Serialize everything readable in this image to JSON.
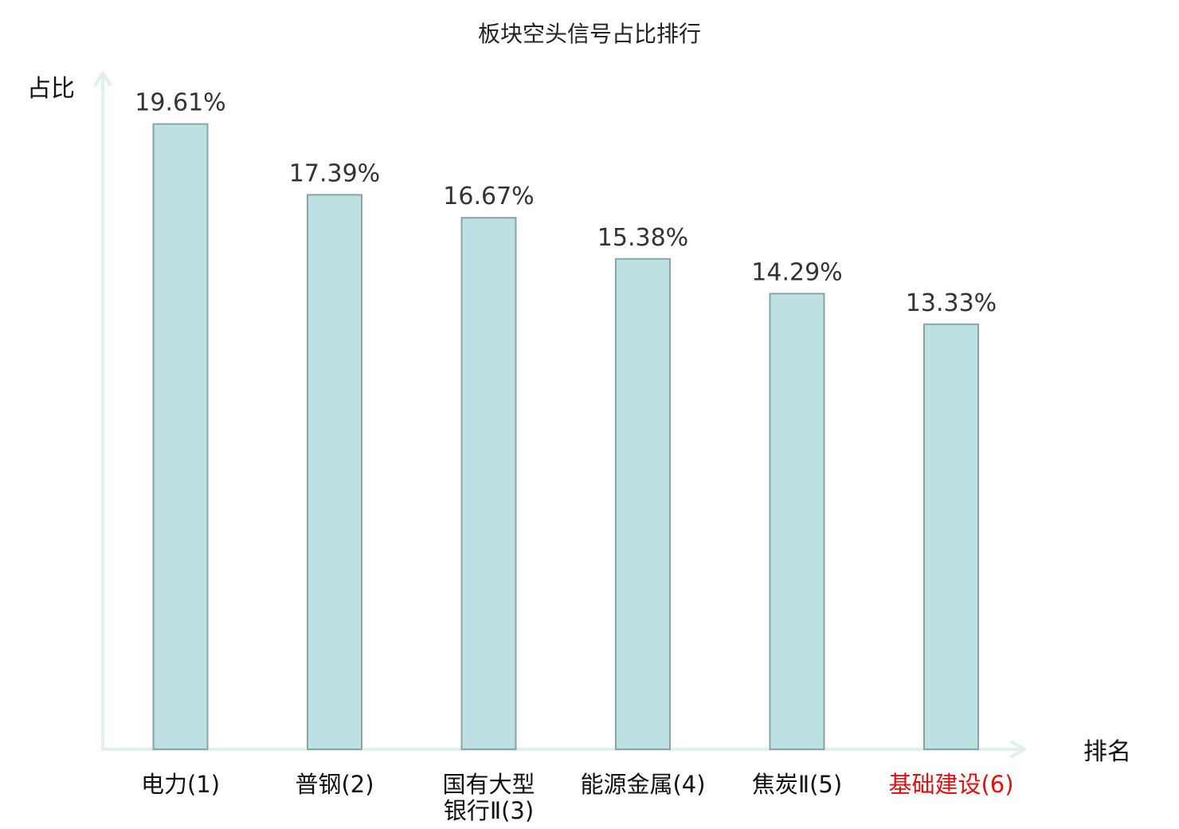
{
  "chart_data": {
    "type": "bar",
    "title": "板块空头信号占比排行",
    "ylabel": "占比",
    "xlabel": "排名",
    "ylim": [
      0,
      21.05
    ],
    "categories": [
      [
        "电力(1)"
      ],
      [
        "普钢(2)"
      ],
      [
        "国有大型",
        "银行Ⅱ(3)"
      ],
      [
        "能源金属(4)"
      ],
      [
        "焦炭Ⅱ(5)"
      ],
      [
        "基础建设(6)"
      ]
    ],
    "values": [
      19.61,
      17.39,
      16.67,
      15.38,
      14.29,
      13.33
    ],
    "value_labels": [
      "19.61%",
      "17.39%",
      "16.67%",
      "15.38%",
      "14.29%",
      "13.33%"
    ],
    "highlight_index": 5,
    "grid": false,
    "legend": "none",
    "colors": {
      "bar_fill": "#bde0e3",
      "bar_stroke": "#8aa5a7",
      "axis": "#dff0ee",
      "highlight_text": "#e01010",
      "text": "#111111"
    }
  }
}
